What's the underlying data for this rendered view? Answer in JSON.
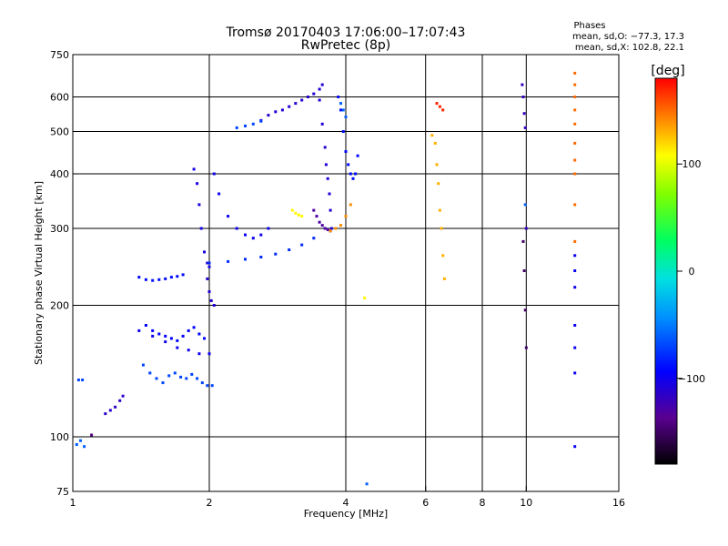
{
  "chart_data": {
    "type": "scatter",
    "title": "Tromsø 20170403 17:06:00–17:07:43",
    "subtitle": "RwPretec (8p)",
    "xlabel": "Frequency [MHz]",
    "ylabel": "Stationary phase Virtual Height [km]",
    "x_scale": "log",
    "y_scale": "log",
    "xlim": [
      1,
      16
    ],
    "ylim": [
      75,
      750
    ],
    "x_ticks": [
      1,
      2,
      4,
      6,
      8,
      10,
      16
    ],
    "y_ticks": [
      75,
      100,
      200,
      300,
      400,
      500,
      600,
      750
    ],
    "x_gridlines": [
      2,
      4,
      6,
      8,
      10
    ],
    "y_gridlines": [
      100,
      200,
      300,
      400,
      500,
      600
    ],
    "grid": true,
    "legend": {
      "title": "Phases",
      "line1": "mean, sd,O: −77.3, 17.3",
      "line2": "mean, sd,X: 102.8, 22.1",
      "placement": "top-right"
    },
    "colorbar": {
      "label": "[deg]",
      "range": [
        -180,
        180
      ],
      "ticks": [
        100,
        0,
        -100
      ]
    },
    "traces": [
      {
        "f": [
          1.03,
          1.05
        ],
        "h": [
          135,
          135
        ],
        "phase": -70
      },
      {
        "f": [
          1.02,
          1.04,
          1.06
        ],
        "h": [
          96,
          98,
          95
        ],
        "phase": -60
      },
      {
        "f": [
          1.1
        ],
        "h": [
          101
        ],
        "phase": -140
      },
      {
        "f": [
          1.18,
          1.21,
          1.24,
          1.27,
          1.29
        ],
        "h": [
          113,
          115,
          117,
          121,
          124
        ],
        "phase": -115
      },
      {
        "f": [
          1.4,
          1.45,
          1.5,
          1.55,
          1.6,
          1.65,
          1.7,
          1.75
        ],
        "h": [
          232,
          229,
          228,
          229,
          230,
          232,
          233,
          235
        ],
        "phase": -90
      },
      {
        "f": [
          1.43,
          1.48,
          1.53,
          1.58,
          1.63,
          1.68,
          1.73,
          1.78,
          1.83,
          1.88,
          1.93,
          1.98,
          2.03
        ],
        "h": [
          146,
          140,
          136,
          133,
          138,
          140,
          137,
          136,
          139,
          136,
          133,
          131,
          131
        ],
        "phase": -70
      },
      {
        "f": [
          1.4,
          1.5,
          1.6,
          1.7,
          1.8,
          1.9,
          2.0
        ],
        "h": [
          175,
          170,
          165,
          160,
          158,
          155,
          155
        ],
        "phase": -100
      },
      {
        "f": [
          1.45,
          1.5,
          1.55,
          1.6,
          1.65,
          1.7,
          1.75,
          1.8,
          1.85,
          1.9,
          1.95
        ],
        "h": [
          180,
          175,
          172,
          170,
          168,
          166,
          170,
          175,
          178,
          172,
          168
        ],
        "phase": -95
      },
      {
        "f": [
          1.85,
          1.88,
          1.9,
          1.92,
          1.95,
          1.98,
          2.0
        ],
        "h": [
          410,
          380,
          340,
          300,
          265,
          250,
          245
        ],
        "phase": -105
      },
      {
        "f": [
          2.05,
          2.1,
          2.2,
          2.3,
          2.4,
          2.5,
          2.6,
          2.7
        ],
        "h": [
          400,
          360,
          320,
          300,
          290,
          285,
          290,
          300
        ],
        "phase": -100
      },
      {
        "f": [
          1.98,
          2.0,
          2.02,
          2.05
        ],
        "h": [
          230,
          215,
          205,
          200
        ],
        "phase": -110
      },
      {
        "f": [
          2.0,
          2.2,
          2.4,
          2.6,
          2.8,
          3.0,
          3.2,
          3.4,
          3.6
        ],
        "h": [
          250,
          252,
          255,
          258,
          262,
          268,
          275,
          285,
          300
        ],
        "phase": -80
      },
      {
        "f": [
          2.6,
          2.7,
          2.8,
          2.9,
          3.0,
          3.1,
          3.2,
          3.3,
          3.4,
          3.5,
          3.55
        ],
        "h": [
          530,
          545,
          555,
          560,
          570,
          580,
          590,
          600,
          610,
          625,
          640
        ],
        "phase": -110
      },
      {
        "f": [
          2.3,
          2.4,
          2.5,
          2.6
        ],
        "h": [
          510,
          515,
          520,
          528
        ],
        "phase": -70
      },
      {
        "f": [
          3.5,
          3.55,
          3.6,
          3.62,
          3.65,
          3.68,
          3.7,
          3.72
        ],
        "h": [
          590,
          520,
          460,
          420,
          390,
          360,
          330,
          300
        ],
        "phase": -110
      },
      {
        "f": [
          3.4,
          3.45,
          3.5,
          3.55,
          3.6,
          3.65,
          3.7
        ],
        "h": [
          330,
          320,
          310,
          305,
          300,
          298,
          296
        ],
        "phase": -130
      },
      {
        "f": [
          3.7,
          3.8,
          3.9,
          4.0,
          4.1
        ],
        "h": [
          296,
          300,
          305,
          320,
          340
        ],
        "phase": 140
      },
      {
        "f": [
          3.05,
          3.1,
          3.15,
          3.2
        ],
        "h": [
          330,
          325,
          322,
          320
        ],
        "phase": 110
      },
      {
        "f": [
          3.85,
          3.9,
          3.95,
          4.0,
          4.05,
          4.1,
          4.15,
          4.2,
          4.25
        ],
        "h": [
          600,
          560,
          500,
          450,
          420,
          400,
          390,
          400,
          440
        ],
        "phase": -90
      },
      {
        "f": [
          3.9,
          3.95,
          4.0
        ],
        "h": [
          580,
          560,
          540
        ],
        "phase": -60
      },
      {
        "f": [
          4.4
        ],
        "h": [
          208
        ],
        "phase": 110
      },
      {
        "f": [
          4.45
        ],
        "h": [
          78
        ],
        "phase": -60
      },
      {
        "f": [
          6.2,
          6.3,
          6.35,
          6.4,
          6.45,
          6.5,
          6.55,
          6.6
        ],
        "h": [
          490,
          470,
          420,
          380,
          330,
          300,
          260,
          230
        ],
        "phase": 130
      },
      {
        "f": [
          6.35,
          6.45,
          6.55
        ],
        "h": [
          580,
          570,
          560
        ],
        "phase": 170
      },
      {
        "f": [
          9.8,
          9.85,
          9.9,
          9.95,
          10.0
        ],
        "h": [
          640,
          600,
          550,
          510,
          300
        ],
        "phase": -120
      },
      {
        "f": [
          9.85,
          9.9,
          9.95,
          10.0
        ],
        "h": [
          280,
          240,
          195,
          160
        ],
        "phase": -150
      },
      {
        "f": [
          9.95
        ],
        "h": [
          340
        ],
        "phase": -60
      },
      {
        "f": [
          12.8,
          12.8,
          12.8,
          12.8,
          12.8,
          12.8,
          12.8,
          12.8,
          12.8,
          12.8
        ],
        "h": [
          680,
          640,
          600,
          560,
          520,
          470,
          430,
          400,
          340,
          280
        ],
        "phase": 150
      },
      {
        "f": [
          12.8,
          12.8,
          12.8,
          12.8,
          12.8,
          12.8,
          12.8
        ],
        "h": [
          260,
          240,
          220,
          180,
          160,
          140,
          95
        ],
        "phase": -100
      }
    ]
  }
}
